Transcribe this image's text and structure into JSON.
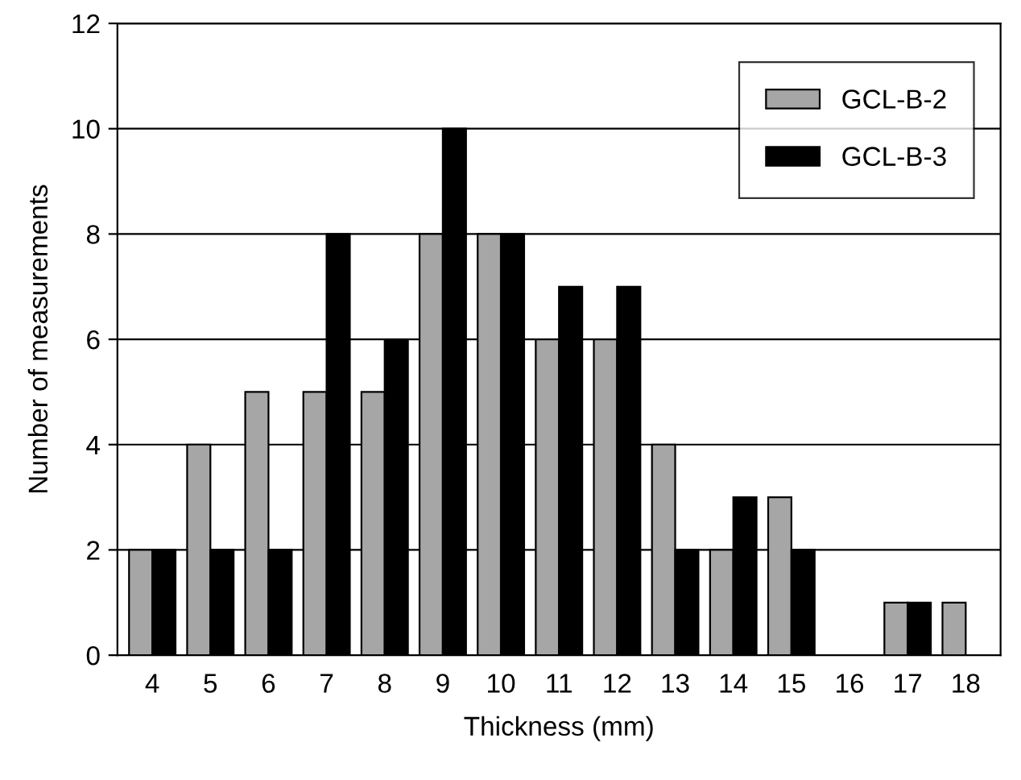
{
  "chart_data": {
    "type": "bar",
    "xlabel": "Thickness (mm)",
    "ylabel": "Number of measurements",
    "categories": [
      "4",
      "5",
      "6",
      "7",
      "8",
      "9",
      "10",
      "11",
      "12",
      "13",
      "14",
      "15",
      "16",
      "17",
      "18"
    ],
    "series": [
      {
        "name": "GCL-B-2",
        "color": "#a6a6a6",
        "values": [
          2,
          4,
          5,
          5,
          5,
          8,
          8,
          6,
          6,
          4,
          2,
          3,
          0,
          1,
          1
        ]
      },
      {
        "name": "GCL-B-3",
        "color": "#000000",
        "values": [
          2,
          2,
          2,
          8,
          6,
          10,
          8,
          7,
          7,
          2,
          3,
          2,
          0,
          1,
          0
        ]
      }
    ],
    "ylim": [
      0,
      12
    ],
    "yticks": [
      0,
      2,
      4,
      6,
      8,
      10,
      12
    ],
    "grid": "y",
    "legend": "top right"
  }
}
